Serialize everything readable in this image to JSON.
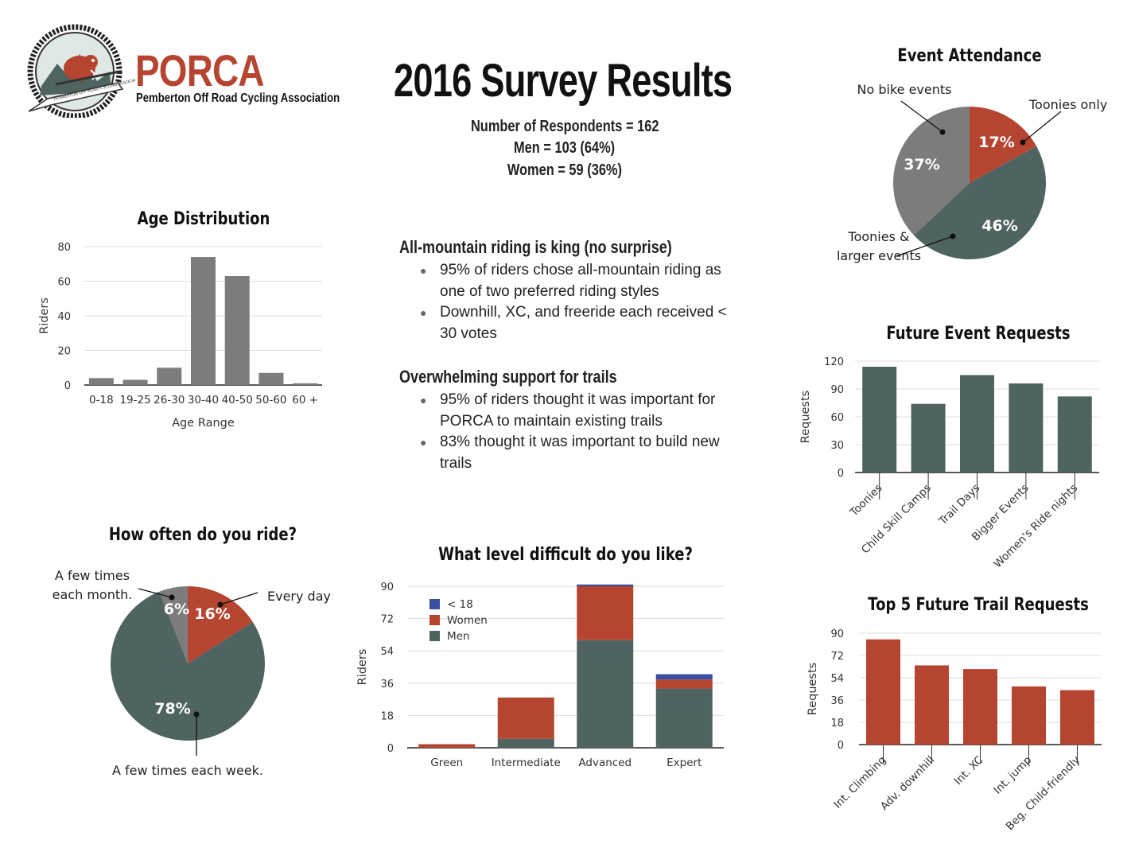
{
  "header": {
    "logo_name": "PORCA",
    "logo_tagline": "Pemberton Off Road Cycling Association",
    "logo_ring_text": "PEMBERTON OFF-ROAD CYCLING ASSOCIATION",
    "title": "2016 Survey Results",
    "respondents": "Number of Respondents = 162",
    "men": "Men = 103 (64%)",
    "women": "Women = 59 (36%)"
  },
  "findings": {
    "sections": [
      {
        "heading": "All-mountain riding is king (no surprise)",
        "bullets": [
          "95% of riders chose all-mountain riding as one of two preferred riding styles",
          "Downhill, XC, and freeride each received < 30 votes"
        ]
      },
      {
        "heading": "Overwhelming support for trails",
        "bullets": [
          "95% of riders thought it was important for PORCA to maintain existing trails",
          "83% thought it was important to build new trails"
        ]
      }
    ]
  },
  "colors": {
    "red": "#b54530",
    "slate": "#4f6461",
    "gray": "#7c7c7c",
    "blue": "#3b4fa0"
  },
  "chart_data": [
    {
      "id": "age",
      "type": "bar",
      "title": "Age Distribution",
      "xlabel": "Age Range",
      "ylabel": "Riders",
      "categories": [
        "0-18",
        "19-25",
        "26-30",
        "30-40",
        "40-50",
        "50-60",
        "60 +"
      ],
      "values": [
        4,
        3,
        10,
        74,
        63,
        7,
        1
      ],
      "ylim": [
        0,
        80
      ],
      "yticks": [
        0,
        20,
        40,
        60,
        80
      ]
    },
    {
      "id": "attendance",
      "type": "pie",
      "title": "Event Attendance",
      "slices": [
        {
          "label": "Toonies only",
          "value": 17,
          "pct": "17%",
          "color": "#b54530"
        },
        {
          "label": "Toonies & larger events",
          "value": 46,
          "pct": "46%",
          "color": "#4f6461"
        },
        {
          "label": "No bike events",
          "value": 37,
          "pct": "37%",
          "color": "#7c7c7c"
        }
      ]
    },
    {
      "id": "future_events",
      "type": "bar",
      "title": "Future Event Requests",
      "ylabel": "Requests",
      "categories": [
        "Toonies",
        "Child Skill Camps",
        "Trail Days",
        "Bigger Events",
        "Women's Ride nights"
      ],
      "values": [
        114,
        74,
        105,
        96,
        82
      ],
      "ylim": [
        0,
        120
      ],
      "yticks": [
        0,
        30,
        60,
        90,
        120
      ]
    },
    {
      "id": "ride_freq",
      "type": "pie",
      "title": "How often do you ride?",
      "slices": [
        {
          "label": "Every day",
          "value": 16,
          "pct": "16%",
          "color": "#b54530"
        },
        {
          "label": "A few times each week.",
          "value": 78,
          "pct": "78%",
          "color": "#4f6461"
        },
        {
          "label": "A few times each month.",
          "value": 6,
          "pct": "6%",
          "color": "#7c7c7c"
        }
      ]
    },
    {
      "id": "difficulty",
      "type": "bar",
      "title": "What level difficult do you like?",
      "ylabel": "Riders",
      "categories": [
        "Green",
        "Intermediate",
        "Advanced",
        "Expert"
      ],
      "series": [
        {
          "name": "Men",
          "values": [
            0,
            5,
            60,
            33
          ],
          "color": "#4f6461"
        },
        {
          "name": "Women",
          "values": [
            2,
            23,
            30,
            5
          ],
          "color": "#b54530"
        },
        {
          "name": "< 18",
          "values": [
            0,
            0,
            1,
            3
          ],
          "color": "#3b4fa0"
        }
      ],
      "legend_order": [
        "< 18",
        "Women",
        "Men"
      ],
      "ylim": [
        0,
        90
      ],
      "yticks": [
        0,
        18,
        36,
        54,
        72,
        90
      ]
    },
    {
      "id": "trails",
      "type": "bar",
      "title": "Top 5 Future Trail Requests",
      "ylabel": "Requests",
      "categories": [
        "Int. Climbing",
        "Adv. downhill",
        "Int. XC",
        "Int. jump",
        "Beg. Child-friendly"
      ],
      "values": [
        85,
        64,
        61,
        47,
        44
      ],
      "ylim": [
        0,
        90
      ],
      "yticks": [
        0,
        18,
        36,
        54,
        72,
        90
      ]
    }
  ]
}
